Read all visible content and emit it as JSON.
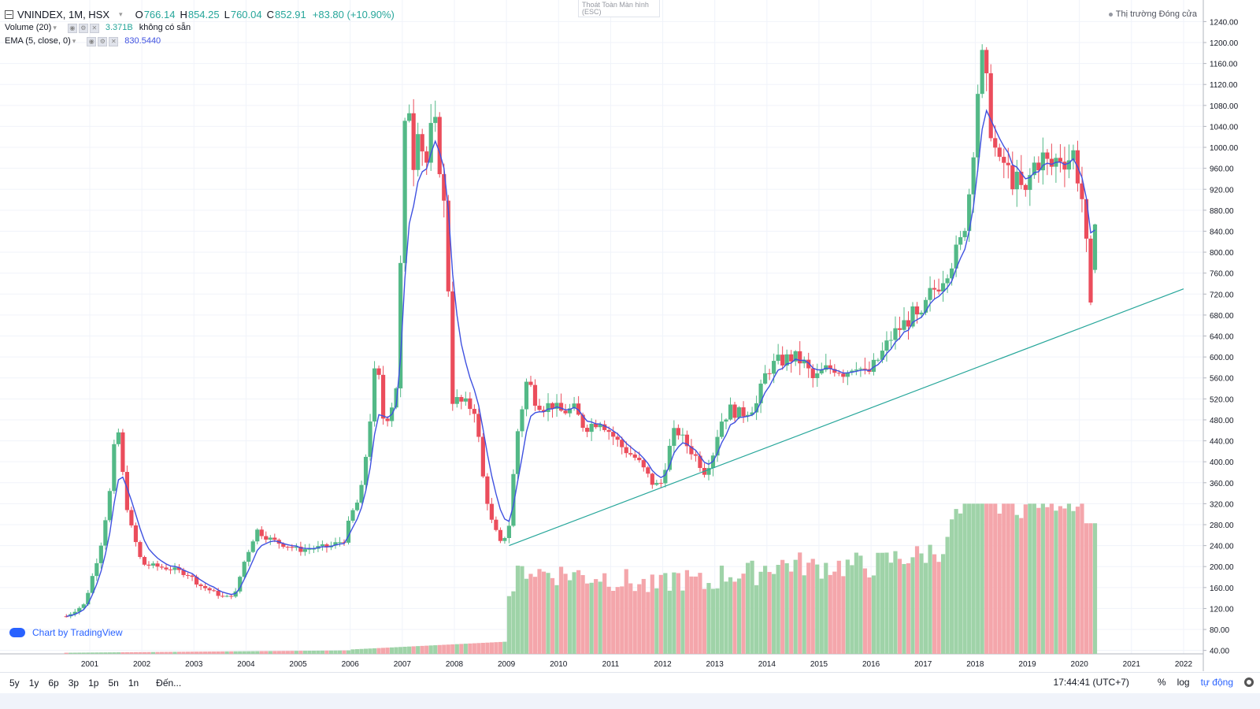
{
  "legend": {
    "symbol": "VNINDEX, 1M, HSX",
    "open_key": "O",
    "open": "766.14",
    "high_key": "H",
    "high": "854.25",
    "low_key": "L",
    "low": "760.04",
    "close_key": "C",
    "close": "852.91",
    "change": "+83.80 (+10.90%)",
    "volume_label": "Volume (20)",
    "volume_value": "3.371B",
    "volume_note": "không có sẵn",
    "ema_label": "EMA (5, close, 0)",
    "ema_value": "830.5440"
  },
  "fullscreen_tip": {
    "line1": "Thoát Toàn Màn hình",
    "line2": "(ESC)"
  },
  "market_status": "Thị trường Đóng cửa",
  "watermark": "Chart by TradingView",
  "bottom": {
    "ranges": [
      "5y",
      "1y",
      "6p",
      "3p",
      "1p",
      "5n",
      "1n"
    ],
    "goto": "Đến...",
    "clock": "17:44:41 (UTC+7)",
    "percent": "%",
    "log": "log",
    "auto": "tự động"
  },
  "colors": {
    "up": "#26a69a",
    "up_candle": "#53b987",
    "down": "#eb4d5c",
    "ema": "#3f51e0",
    "trend": "#26a69a",
    "vol_up": "#9fd3a8",
    "vol_down": "#f4a6ab",
    "grid": "#f0f3fa"
  },
  "chart_data": {
    "type": "candlestick",
    "interval": "1M",
    "xaxis": {
      "labels": [
        "2001",
        "2002",
        "2003",
        "2004",
        "2005",
        "2006",
        "2007",
        "2008",
        "2009",
        "2010",
        "2011",
        "2012",
        "2013",
        "2014",
        "2015",
        "2016",
        "2017",
        "2018",
        "2019",
        "2020",
        "2021",
        "2022"
      ],
      "range": [
        2000.7,
        2022.3
      ]
    },
    "yaxis": {
      "ticks": [
        40,
        80,
        120,
        160,
        200,
        240,
        280,
        320,
        360,
        400,
        440,
        480,
        520,
        560,
        600,
        640,
        680,
        720,
        760,
        800,
        840,
        880,
        920,
        960,
        1000,
        1040,
        1080,
        1120,
        1160,
        1200,
        1240
      ],
      "range": [
        40,
        1260
      ],
      "side": "right"
    },
    "grid": true,
    "anchors": [
      [
        2000.5,
        102
      ],
      [
        2000.9,
        128
      ],
      [
        2001.2,
        235
      ],
      [
        2001.45,
        380
      ],
      [
        2001.5,
        510
      ],
      [
        2001.6,
        400
      ],
      [
        2001.75,
        290
      ],
      [
        2001.9,
        240
      ],
      [
        2002.0,
        205
      ],
      [
        2002.3,
        200
      ],
      [
        2002.6,
        195
      ],
      [
        2002.9,
        185
      ],
      [
        2003.1,
        165
      ],
      [
        2003.4,
        150
      ],
      [
        2003.6,
        140
      ],
      [
        2003.8,
        150
      ],
      [
        2003.95,
        205
      ],
      [
        2004.2,
        270
      ],
      [
        2004.5,
        250
      ],
      [
        2004.8,
        240
      ],
      [
        2005.0,
        232
      ],
      [
        2005.3,
        235
      ],
      [
        2005.6,
        238
      ],
      [
        2005.9,
        252
      ],
      [
        2006.0,
        295
      ],
      [
        2006.2,
        335
      ],
      [
        2006.35,
        450
      ],
      [
        2006.5,
        600
      ],
      [
        2006.65,
        470
      ],
      [
        2006.8,
        510
      ],
      [
        2006.92,
        560
      ],
      [
        2007.0,
        920
      ],
      [
        2007.1,
        1140
      ],
      [
        2007.2,
        960
      ],
      [
        2007.3,
        1050
      ],
      [
        2007.45,
        960
      ],
      [
        2007.6,
        1060
      ],
      [
        2007.7,
        985
      ],
      [
        2007.85,
        840
      ],
      [
        2007.95,
        520
      ],
      [
        2008.2,
        510
      ],
      [
        2008.4,
        500
      ],
      [
        2008.55,
        370
      ],
      [
        2008.7,
        290
      ],
      [
        2008.9,
        240
      ],
      [
        2009.05,
        280
      ],
      [
        2009.2,
        450
      ],
      [
        2009.4,
        560
      ],
      [
        2009.55,
        520
      ],
      [
        2009.7,
        505
      ],
      [
        2009.9,
        510
      ],
      [
        2010.0,
        495
      ],
      [
        2010.3,
        500
      ],
      [
        2010.5,
        465
      ],
      [
        2010.8,
        480
      ],
      [
        2011.0,
        455
      ],
      [
        2011.2,
        430
      ],
      [
        2011.5,
        405
      ],
      [
        2011.8,
        360
      ],
      [
        2011.95,
        352
      ],
      [
        2012.1,
        415
      ],
      [
        2012.25,
        465
      ],
      [
        2012.4,
        440
      ],
      [
        2012.6,
        415
      ],
      [
        2012.8,
        383
      ],
      [
        2012.95,
        410
      ],
      [
        2013.1,
        475
      ],
      [
        2013.3,
        500
      ],
      [
        2013.5,
        490
      ],
      [
        2013.8,
        510
      ],
      [
        2014.0,
        575
      ],
      [
        2014.2,
        590
      ],
      [
        2014.5,
        600
      ],
      [
        2014.7,
        590
      ],
      [
        2014.9,
        555
      ],
      [
        2015.1,
        575
      ],
      [
        2015.3,
        580
      ],
      [
        2015.5,
        570
      ],
      [
        2015.7,
        590
      ],
      [
        2015.9,
        565
      ],
      [
        2016.0,
        575
      ],
      [
        2016.2,
        605
      ],
      [
        2016.4,
        640
      ],
      [
        2016.6,
        660
      ],
      [
        2016.8,
        680
      ],
      [
        2016.95,
        665
      ],
      [
        2017.1,
        715
      ],
      [
        2017.3,
        740
      ],
      [
        2017.5,
        775
      ],
      [
        2017.7,
        810
      ],
      [
        2017.85,
        880
      ],
      [
        2017.95,
        985
      ],
      [
        2018.05,
        1110
      ],
      [
        2018.15,
        1175
      ],
      [
        2018.3,
        1040
      ],
      [
        2018.45,
        960
      ],
      [
        2018.55,
        970
      ],
      [
        2018.7,
        940
      ],
      [
        2018.85,
        930
      ],
      [
        2018.95,
        900
      ],
      [
        2019.1,
        965
      ],
      [
        2019.3,
        980
      ],
      [
        2019.45,
        960
      ],
      [
        2019.6,
        985
      ],
      [
        2019.75,
        975
      ],
      [
        2019.9,
        990
      ],
      [
        2020.0,
        925
      ],
      [
        2020.1,
        880
      ],
      [
        2020.2,
        665
      ],
      [
        2020.27,
        760
      ],
      [
        2020.35,
        853
      ]
    ],
    "ema": {
      "label": "EMA (5, close, 0)",
      "period": 5
    },
    "volume": {
      "label": "Volume (20)",
      "max_bar_price_scale": 345
    },
    "trend_line": {
      "from": [
        2009.05,
        240
      ],
      "to": [
        2022.0,
        730
      ]
    },
    "last": {
      "open": 766.14,
      "high": 854.25,
      "low": 760.04,
      "close": 852.91
    }
  }
}
